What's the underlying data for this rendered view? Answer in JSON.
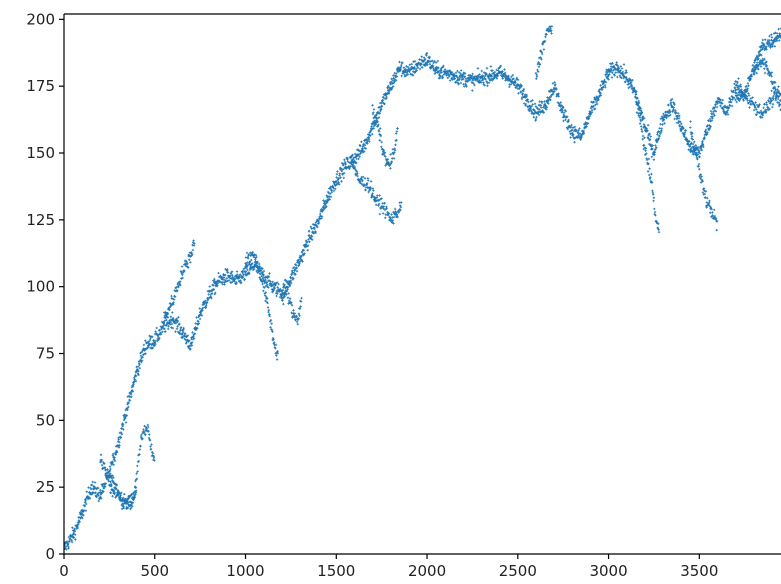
{
  "chart_data": {
    "type": "scatter",
    "title": "",
    "xlabel": "",
    "ylabel": "",
    "xlim": [
      0,
      3950
    ],
    "ylim": [
      0,
      202
    ],
    "x_ticks": [
      0,
      500,
      1000,
      1500,
      2000,
      2500,
      3000,
      3500
    ],
    "x_tick_labels": [
      "0",
      "500",
      "1000",
      "1500",
      "2000",
      "2500",
      "3000",
      "3500"
    ],
    "y_ticks": [
      0,
      25,
      50,
      75,
      100,
      125,
      150,
      175,
      200
    ],
    "y_tick_labels": [
      "0",
      "25",
      "50",
      "75",
      "100",
      "125",
      "150",
      "175",
      "200"
    ],
    "grid": false,
    "marker": "small cross",
    "color": "#1f77b4",
    "trend": {
      "x": [
        0,
        50,
        100,
        150,
        200,
        250,
        300,
        350,
        400,
        450,
        500,
        550,
        600,
        650,
        700,
        750,
        800,
        850,
        900,
        950,
        1000,
        1050,
        1100,
        1150,
        1200,
        1250,
        1300,
        1350,
        1400,
        1450,
        1500,
        1550,
        1600,
        1650,
        1700,
        1750,
        1800,
        1850,
        1900,
        1950,
        2000,
        2050,
        2100,
        2150,
        2200,
        2250,
        2300,
        2350,
        2400,
        2450,
        2500,
        2550,
        2600,
        2650,
        2700,
        2750,
        2800,
        2850,
        2900,
        2950,
        3000,
        3050,
        3100,
        3150,
        3200,
        3250,
        3300,
        3350,
        3400,
        3450,
        3500,
        3550,
        3600,
        3650,
        3700,
        3750,
        3800,
        3850,
        3900,
        3950
      ],
      "y": [
        2,
        7,
        15,
        25,
        22,
        30,
        42,
        55,
        68,
        78,
        80,
        85,
        88,
        83,
        78,
        90,
        97,
        102,
        104,
        102,
        105,
        108,
        104,
        100,
        98,
        103,
        110,
        118,
        124,
        133,
        140,
        145,
        148,
        152,
        160,
        168,
        175,
        182,
        180,
        183,
        185,
        181,
        180,
        179,
        178,
        177,
        178,
        179,
        180,
        178,
        175,
        170,
        165,
        168,
        175,
        165,
        158,
        156,
        165,
        172,
        180,
        182,
        178,
        172,
        160,
        150,
        163,
        168,
        160,
        152,
        150,
        160,
        170,
        165,
        175,
        172,
        182,
        190,
        192,
        195
      ]
    },
    "branches": [
      {
        "x": [
          200,
          260,
          320,
          380,
          430,
          460,
          500
        ],
        "y": [
          35,
          28,
          20,
          18,
          45,
          48,
          33
        ]
      },
      {
        "x": [
          250,
          300,
          330,
          350,
          380,
          400
        ],
        "y": [
          25,
          22,
          18,
          20,
          22,
          23
        ]
      },
      {
        "x": [
          550,
          600,
          650,
          700,
          720
        ],
        "y": [
          88,
          95,
          105,
          112,
          118
        ]
      },
      {
        "x": [
          1000,
          1050,
          1100,
          1130,
          1160,
          1180
        ],
        "y": [
          110,
          112,
          100,
          90,
          78,
          74
        ]
      },
      {
        "x": [
          1200,
          1230,
          1260,
          1290,
          1310
        ],
        "y": [
          95,
          98,
          90,
          88,
          96
        ]
      },
      {
        "x": [
          1580,
          1620,
          1680,
          1720,
          1760,
          1800,
          1840,
          1860
        ],
        "y": [
          148,
          140,
          138,
          132,
          130,
          125,
          128,
          132
        ]
      },
      {
        "x": [
          1700,
          1730,
          1760,
          1790,
          1820,
          1840
        ],
        "y": [
          165,
          160,
          150,
          145,
          150,
          160
        ]
      },
      {
        "x": [
          2600,
          2630,
          2660,
          2690
        ],
        "y": [
          178,
          188,
          195,
          197
        ]
      },
      {
        "x": [
          3150,
          3180,
          3210,
          3240,
          3260,
          3280
        ],
        "y": [
          170,
          160,
          148,
          138,
          125,
          120
        ]
      },
      {
        "x": [
          3450,
          3480,
          3510,
          3540,
          3570,
          3600
        ],
        "y": [
          160,
          150,
          140,
          132,
          128,
          123
        ]
      },
      {
        "x": [
          3700,
          3750,
          3800,
          3850,
          3900,
          3950
        ],
        "y": [
          170,
          172,
          168,
          165,
          170,
          172
        ]
      },
      {
        "x": [
          3800,
          3850,
          3900,
          3950
        ],
        "y": [
          180,
          185,
          178,
          168
        ]
      }
    ]
  }
}
